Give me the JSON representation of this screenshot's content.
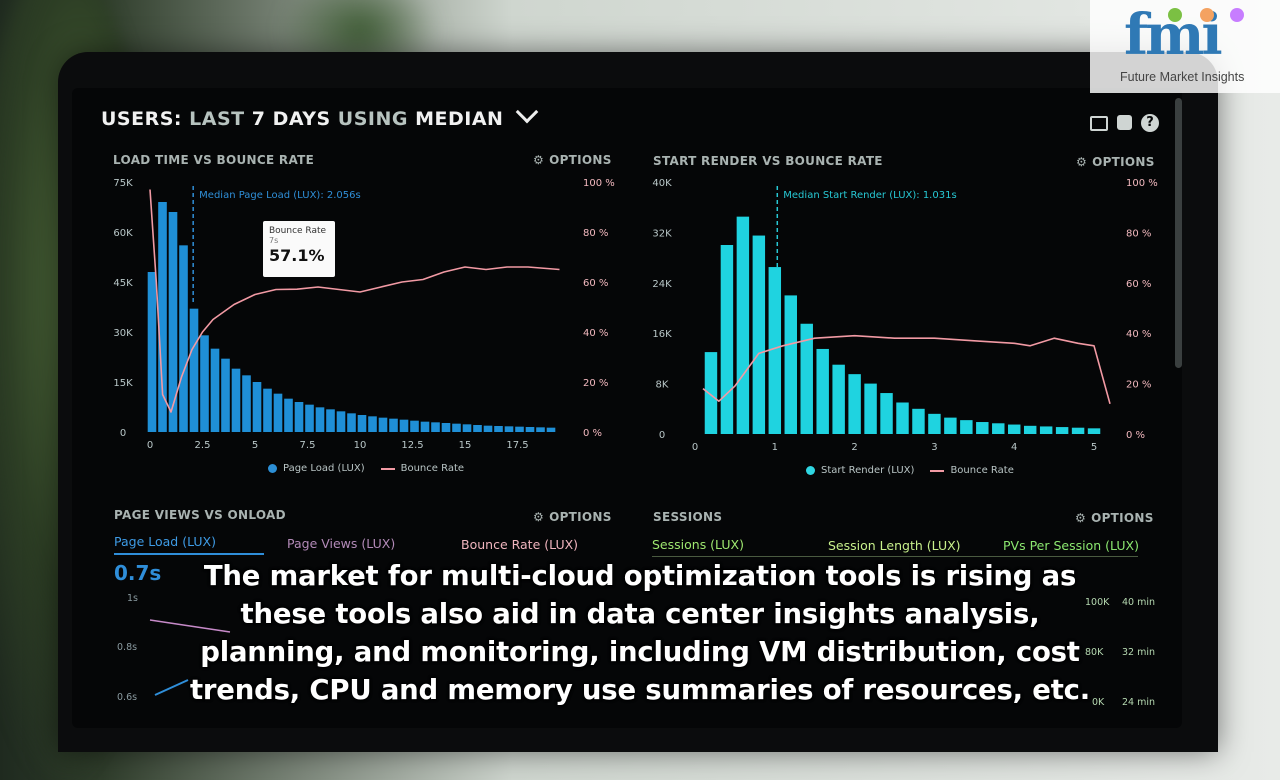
{
  "header": {
    "title_parts": [
      "USERS:",
      "LAST",
      "7 DAYS",
      "USING",
      "MEDIAN"
    ]
  },
  "options_label": "OPTIONS",
  "panels": {
    "load_time": {
      "title": "LOAD TIME VS BOUNCE RATE",
      "median_label": "Median Page Load (LUX): 2.056s",
      "legend": [
        "Page Load (LUX)",
        "Bounce Rate"
      ],
      "tooltip": {
        "label": "Bounce Rate",
        "sub": "7s",
        "value": "57.1%"
      }
    },
    "start_render": {
      "title": "START RENDER VS BOUNCE RATE",
      "median_label": "Median Start Render (LUX): 1.031s",
      "legend": [
        "Start Render (LUX)",
        "Bounce Rate"
      ]
    },
    "page_views": {
      "title": "PAGE VIEWS VS ONLOAD",
      "tabs": [
        "Page Load (LUX)",
        "Page Views (LUX)",
        "Bounce Rate (LUX)"
      ],
      "metric": "0.7s",
      "y_ticks": [
        "1s",
        "0.8s",
        "0.6s"
      ]
    },
    "sessions": {
      "title": "SESSIONS",
      "tabs": [
        "Sessions (LUX)",
        "Session Length (LUX)",
        "PVs Per Session (LUX)"
      ],
      "left_ticks": [
        "100K",
        "80K",
        "0K"
      ],
      "right_ticks": [
        "40 min",
        "32 min",
        "24 min"
      ]
    }
  },
  "caption": "The market for multi-cloud optimization tools is rising as these tools also aid in data center insights analysis, planning, and monitoring, including VM distribution, cost trends, CPU and memory use summaries of resources, etc.",
  "logo": {
    "letters": "fmi",
    "name": "Future Market Insights"
  },
  "colors": {
    "bar_blue": "#1f8fd6",
    "bar_cyan": "#1fd3e0",
    "bounce_pink": "#f29aa4",
    "accent_green": "#9fe870"
  },
  "chart_data": [
    {
      "type": "bar",
      "title": "LOAD TIME VS BOUNCE RATE",
      "xlabel": "",
      "ylabel": "",
      "x_ticks": [
        "0",
        "2.5",
        "5",
        "7.5",
        "10",
        "12.5",
        "15",
        "17.5"
      ],
      "y_ticks": [
        "0",
        "15K",
        "30K",
        "45K",
        "60K",
        "75K"
      ],
      "y2_ticks": [
        "0 %",
        "20 %",
        "40 %",
        "60 %",
        "80 %",
        "100 %"
      ],
      "ylim": [
        0,
        75000
      ],
      "y2lim": [
        0,
        100
      ],
      "xlim": [
        0,
        20
      ],
      "median_x": 2.056,
      "series": [
        {
          "name": "Page Load (LUX)",
          "type": "bar",
          "x": [
            0,
            0.5,
            1,
            1.5,
            2,
            2.5,
            3,
            3.5,
            4,
            4.5,
            5,
            5.5,
            6,
            6.5,
            7,
            7.5,
            8,
            8.5,
            9,
            9.5,
            10,
            10.5,
            11,
            11.5,
            12,
            12.5,
            13,
            13.5,
            14,
            14.5,
            15,
            15.5,
            16,
            16.5,
            17,
            17.5,
            18,
            18.5,
            19
          ],
          "values": [
            48000,
            69000,
            66000,
            56000,
            37000,
            29000,
            25000,
            22000,
            19000,
            17000,
            15000,
            13000,
            11500,
            10000,
            9000,
            8200,
            7400,
            6800,
            6200,
            5600,
            5100,
            4700,
            4300,
            4000,
            3700,
            3400,
            3100,
            2900,
            2700,
            2500,
            2300,
            2100,
            1900,
            1800,
            1700,
            1600,
            1500,
            1400,
            1300
          ]
        },
        {
          "name": "Bounce Rate",
          "type": "line",
          "x": [
            0,
            0.3,
            0.6,
            1,
            1.5,
            2,
            2.5,
            3,
            4,
            5,
            6,
            7,
            8,
            9,
            10,
            11,
            12,
            13,
            14,
            15,
            16,
            17,
            18,
            19.5
          ],
          "values": [
            97,
            60,
            15,
            8,
            22,
            33,
            40,
            45,
            51,
            55,
            57,
            57.1,
            58,
            57,
            56,
            58,
            60,
            61,
            64,
            66,
            65,
            66,
            66,
            65
          ]
        }
      ]
    },
    {
      "type": "bar",
      "title": "START RENDER VS BOUNCE RATE",
      "xlabel": "",
      "ylabel": "",
      "x_ticks": [
        "0",
        "1",
        "2",
        "3",
        "4",
        "5"
      ],
      "y_ticks": [
        "0",
        "8K",
        "16K",
        "24K",
        "32K",
        "40K"
      ],
      "y2_ticks": [
        "0 %",
        "20 %",
        "40 %",
        "60 %",
        "80 %",
        "100 %"
      ],
      "ylim": [
        0,
        40000
      ],
      "y2lim": [
        0,
        100
      ],
      "xlim": [
        0,
        5.2
      ],
      "median_x": 1.031,
      "series": [
        {
          "name": "Start Render (LUX)",
          "type": "bar",
          "x": [
            0.2,
            0.4,
            0.6,
            0.8,
            1.0,
            1.2,
            1.4,
            1.6,
            1.8,
            2.0,
            2.2,
            2.4,
            2.6,
            2.8,
            3.0,
            3.2,
            3.4,
            3.6,
            3.8,
            4.0,
            4.2,
            4.4,
            4.6,
            4.8,
            5.0
          ],
          "values": [
            13000,
            30000,
            34500,
            31500,
            26500,
            22000,
            17500,
            13500,
            11000,
            9500,
            8000,
            6500,
            5000,
            4000,
            3200,
            2600,
            2200,
            1900,
            1700,
            1500,
            1300,
            1200,
            1100,
            1000,
            900
          ]
        },
        {
          "name": "Bounce Rate",
          "type": "line",
          "x": [
            0.1,
            0.3,
            0.5,
            0.8,
            1.1,
            1.5,
            2,
            2.5,
            3,
            3.5,
            4,
            4.2,
            4.5,
            4.8,
            5.0,
            5.2
          ],
          "values": [
            18,
            13,
            19,
            32,
            35,
            38,
            39,
            38,
            38,
            37,
            36,
            35,
            38,
            36,
            35,
            12
          ]
        }
      ]
    }
  ]
}
